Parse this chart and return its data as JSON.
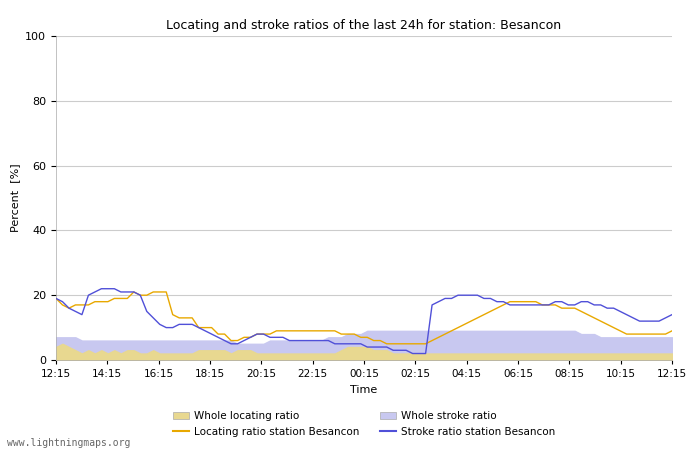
{
  "title": "Locating and stroke ratios of the last 24h for station: Besancon",
  "xlabel": "Time",
  "ylabel": "Percent  [%]",
  "ylim": [
    0,
    100
  ],
  "yticks": [
    0,
    20,
    40,
    60,
    80,
    100
  ],
  "background_color": "#ffffff",
  "plot_bg_color": "#ffffff",
  "watermark": "www.lightningmaps.org",
  "x_labels": [
    "12:15",
    "14:15",
    "16:15",
    "18:15",
    "20:15",
    "22:15",
    "00:15",
    "02:15",
    "04:15",
    "06:15",
    "08:15",
    "10:15",
    "12:15"
  ],
  "whole_locating_color": "#e8d890",
  "whole_stroke_color": "#c8c8f0",
  "locating_station_color": "#e8a800",
  "stroke_station_color": "#5050d8",
  "whole_locating": [
    4,
    5,
    4,
    3,
    2,
    3,
    2,
    3,
    2,
    3,
    2,
    3,
    3,
    2,
    2,
    3,
    2,
    2,
    2,
    2,
    2,
    2,
    3,
    3,
    3,
    3,
    3,
    2,
    3,
    3,
    3,
    2,
    2,
    2,
    2,
    2,
    2,
    2,
    2,
    2,
    2,
    2,
    2,
    2,
    3,
    4,
    4,
    4,
    4,
    3,
    3,
    3,
    2,
    2,
    2,
    2,
    2,
    2,
    2,
    2,
    2,
    2,
    2,
    2,
    2,
    2,
    2,
    2,
    2,
    2,
    2,
    2,
    2,
    2,
    2,
    2,
    2,
    2,
    2,
    2,
    2,
    2,
    2,
    2,
    2,
    2,
    2,
    2,
    2,
    2,
    2,
    2,
    2,
    2,
    2,
    2
  ],
  "whole_stroke": [
    7,
    7,
    7,
    7,
    6,
    6,
    6,
    6,
    6,
    6,
    6,
    6,
    6,
    6,
    6,
    6,
    6,
    6,
    6,
    6,
    6,
    6,
    6,
    6,
    6,
    6,
    6,
    6,
    5,
    5,
    5,
    5,
    5,
    6,
    6,
    6,
    6,
    6,
    6,
    6,
    6,
    6,
    7,
    7,
    7,
    8,
    8,
    8,
    9,
    9,
    9,
    9,
    9,
    9,
    9,
    9,
    9,
    9,
    9,
    9,
    9,
    9,
    9,
    9,
    9,
    9,
    9,
    9,
    9,
    9,
    9,
    9,
    9,
    9,
    9,
    9,
    9,
    9,
    9,
    9,
    9,
    8,
    8,
    8,
    7,
    7,
    7,
    7,
    7,
    7,
    7,
    7,
    7,
    7,
    7,
    7
  ],
  "locating_station": [
    19,
    17,
    16,
    17,
    17,
    17,
    18,
    18,
    18,
    19,
    19,
    19,
    21,
    20,
    20,
    21,
    21,
    21,
    14,
    13,
    13,
    13,
    10,
    10,
    10,
    8,
    8,
    6,
    6,
    7,
    7,
    8,
    8,
    8,
    9,
    9,
    9,
    9,
    9,
    9,
    9,
    9,
    9,
    9,
    8,
    8,
    8,
    7,
    7,
    6,
    6,
    5,
    5,
    5,
    5,
    5,
    5,
    5,
    6,
    7,
    8,
    9,
    10,
    11,
    12,
    13,
    14,
    15,
    16,
    17,
    18,
    18,
    18,
    18,
    18,
    17,
    17,
    17,
    16,
    16,
    16,
    15,
    14,
    13,
    12,
    11,
    10,
    9,
    8,
    8,
    8,
    8,
    8,
    8,
    8,
    9
  ],
  "stroke_station": [
    19,
    18,
    16,
    15,
    14,
    20,
    21,
    22,
    22,
    22,
    21,
    21,
    21,
    20,
    15,
    13,
    11,
    10,
    10,
    11,
    11,
    11,
    10,
    9,
    8,
    7,
    6,
    5,
    5,
    6,
    7,
    8,
    8,
    7,
    7,
    7,
    6,
    6,
    6,
    6,
    6,
    6,
    6,
    5,
    5,
    5,
    5,
    5,
    4,
    4,
    4,
    4,
    3,
    3,
    3,
    2,
    2,
    2,
    17,
    18,
    19,
    19,
    20,
    20,
    20,
    20,
    19,
    19,
    18,
    18,
    17,
    17,
    17,
    17,
    17,
    17,
    17,
    18,
    18,
    17,
    17,
    18,
    18,
    17,
    17,
    16,
    16,
    15,
    14,
    13,
    12,
    12,
    12,
    12,
    13,
    14
  ],
  "n_points": 96,
  "legend_entries": [
    {
      "label": "Whole locating ratio",
      "type": "patch",
      "color": "#e8d890"
    },
    {
      "label": "Locating ratio station Besancon",
      "type": "line",
      "color": "#e8a800"
    },
    {
      "label": "Whole stroke ratio",
      "type": "patch",
      "color": "#c8c8f0"
    },
    {
      "label": "Stroke ratio station Besancon",
      "type": "line",
      "color": "#5050d8"
    }
  ]
}
